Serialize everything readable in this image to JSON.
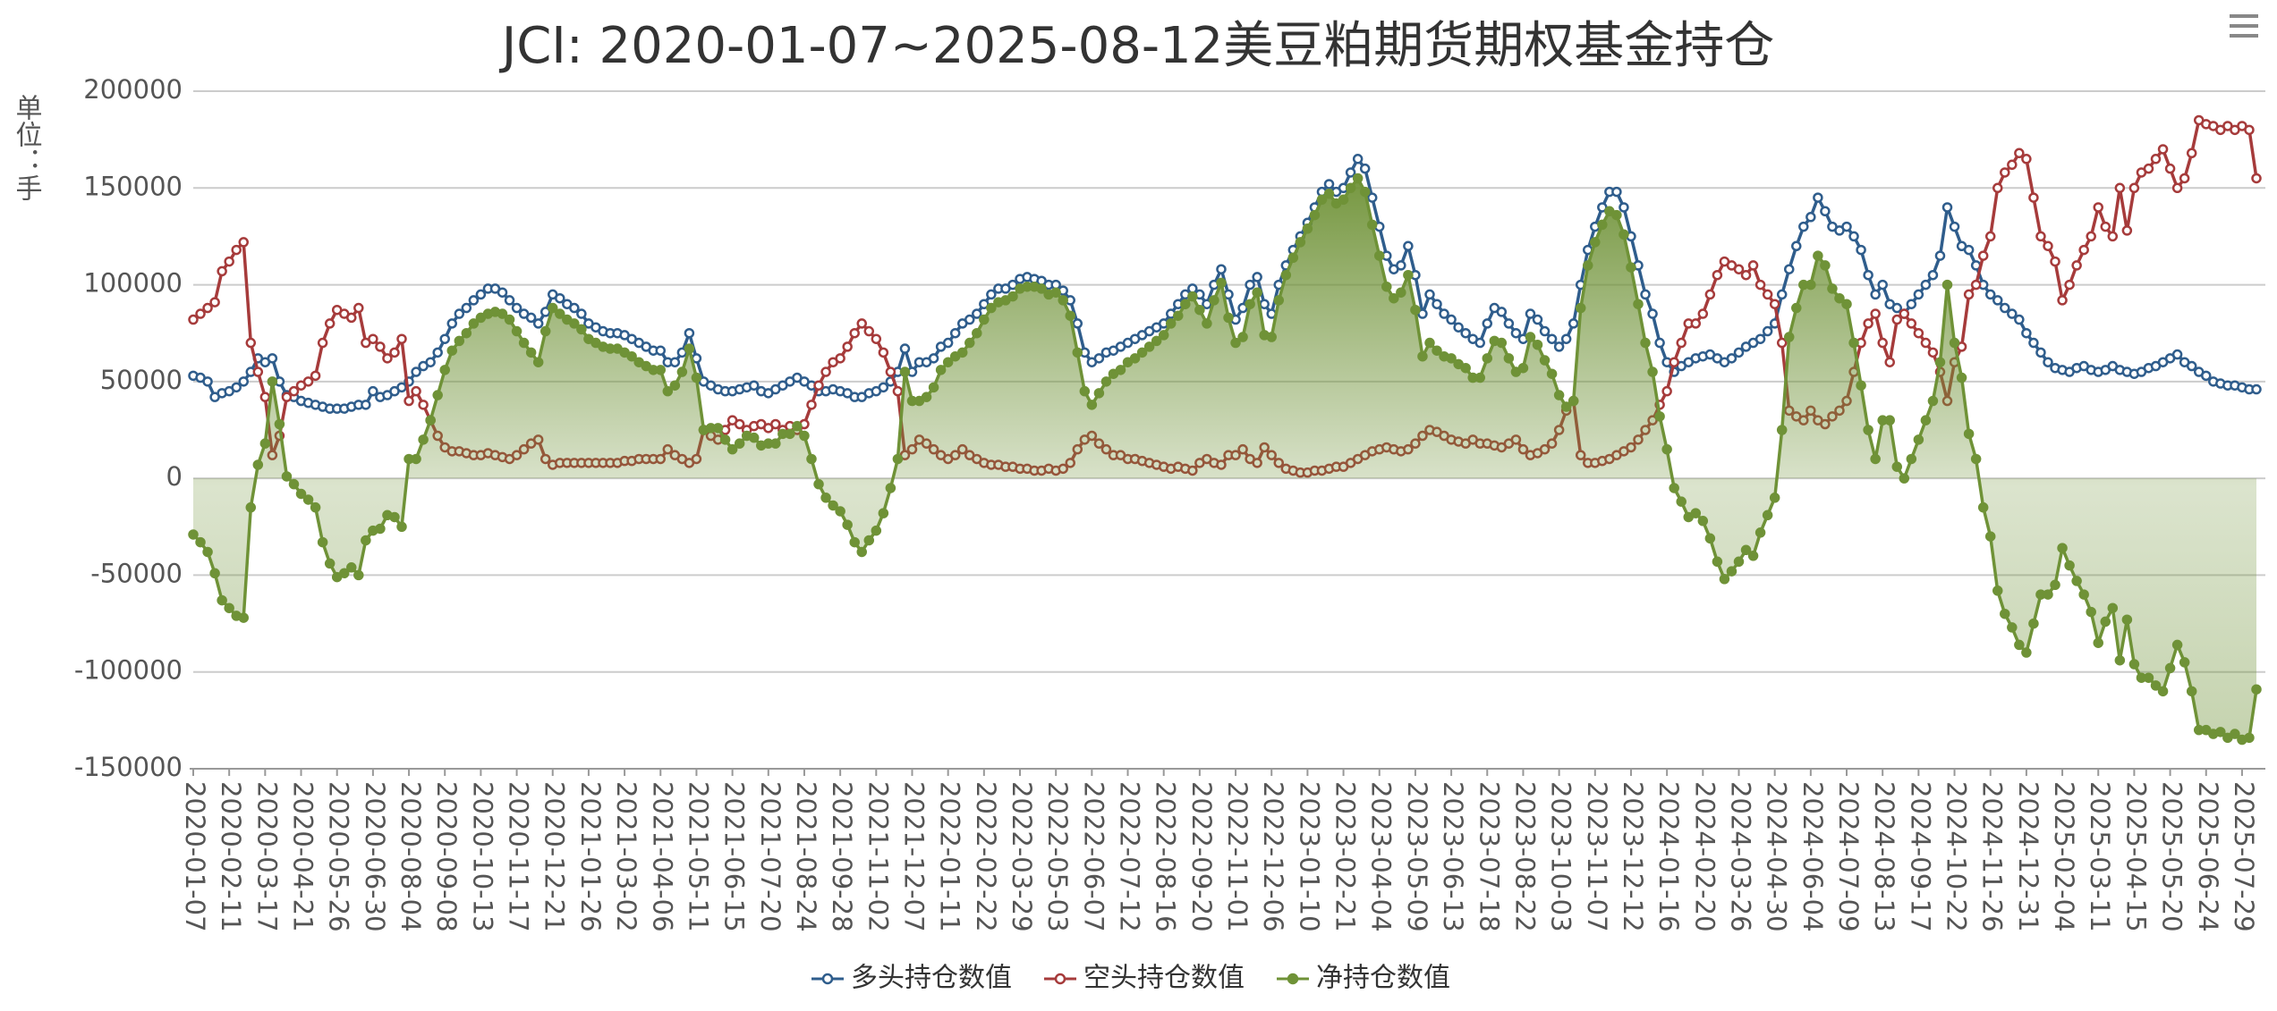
{
  "chart_data": {
    "type": "line",
    "title": "JCI: 2020-01-07~2025-08-12美豆粕期货期权基金持仓",
    "y_label": "单位：手",
    "categories": [
      "2020-01-07",
      null,
      null,
      null,
      null,
      "2020-02-11",
      null,
      null,
      null,
      null,
      "2020-03-17",
      null,
      null,
      null,
      null,
      "2020-04-21",
      null,
      null,
      null,
      null,
      "2020-05-26",
      null,
      null,
      null,
      null,
      "2020-06-30",
      null,
      null,
      null,
      null,
      "2020-08-04",
      null,
      null,
      null,
      null,
      "2020-09-08",
      null,
      null,
      null,
      null,
      "2020-10-13",
      null,
      null,
      null,
      null,
      "2020-11-17",
      null,
      null,
      null,
      null,
      "2020-12-21",
      null,
      null,
      null,
      null,
      "2021-01-26",
      null,
      null,
      null,
      null,
      "2021-03-02",
      null,
      null,
      null,
      null,
      "2021-04-06",
      null,
      null,
      null,
      null,
      "2021-05-11",
      null,
      null,
      null,
      null,
      "2021-06-15",
      null,
      null,
      null,
      null,
      "2021-07-20",
      null,
      null,
      null,
      null,
      "2021-08-24",
      null,
      null,
      null,
      null,
      "2021-09-28",
      null,
      null,
      null,
      null,
      "2021-11-02",
      null,
      null,
      null,
      null,
      "2021-12-07",
      null,
      null,
      null,
      null,
      "2022-01-11",
      null,
      null,
      null,
      null,
      "2022-02-22",
      null,
      null,
      null,
      null,
      "2022-03-29",
      null,
      null,
      null,
      null,
      "2022-05-03",
      null,
      null,
      null,
      null,
      "2022-06-07",
      null,
      null,
      null,
      null,
      "2022-07-12",
      null,
      null,
      null,
      null,
      "2022-08-16",
      null,
      null,
      null,
      null,
      "2022-09-20",
      null,
      null,
      null,
      null,
      "2022-11-01",
      null,
      null,
      null,
      null,
      "2022-12-06",
      null,
      null,
      null,
      null,
      "2023-01-10",
      null,
      null,
      null,
      null,
      "2023-02-21",
      null,
      null,
      null,
      null,
      "2023-04-04",
      null,
      null,
      null,
      null,
      "2023-05-09",
      null,
      null,
      null,
      null,
      "2023-06-13",
      null,
      null,
      null,
      null,
      "2023-07-18",
      null,
      null,
      null,
      null,
      "2023-08-22",
      null,
      null,
      null,
      null,
      "2023-10-03",
      null,
      null,
      null,
      null,
      "2023-11-07",
      null,
      null,
      null,
      null,
      "2023-12-12",
      null,
      null,
      null,
      null,
      "2024-01-16",
      null,
      null,
      null,
      null,
      "2024-02-20",
      null,
      null,
      null,
      null,
      "2024-03-26",
      null,
      null,
      null,
      null,
      "2024-04-30",
      null,
      null,
      null,
      null,
      "2024-06-04",
      null,
      null,
      null,
      null,
      "2024-07-09",
      null,
      null,
      null,
      null,
      "2024-08-13",
      null,
      null,
      null,
      null,
      "2024-09-17",
      null,
      null,
      null,
      null,
      "2024-10-22",
      null,
      null,
      null,
      null,
      "2024-11-26",
      null,
      null,
      null,
      null,
      "2024-12-31",
      null,
      null,
      null,
      null,
      "2025-02-04",
      null,
      null,
      null,
      null,
      "2025-03-11",
      null,
      null,
      null,
      null,
      "2025-04-15",
      null,
      null,
      null,
      null,
      "2025-05-20",
      null,
      null,
      null,
      null,
      "2025-06-24",
      null,
      null,
      null,
      null,
      "2025-07-29",
      null,
      null
    ],
    "series": [
      {
        "name": "多头持仓数值",
        "color": "#2f5d8c",
        "marker": "hollow",
        "values": [
          53000,
          52000,
          50000,
          42000,
          44000,
          45000,
          47000,
          50000,
          55000,
          62000,
          60000,
          62000,
          50000,
          43000,
          42000,
          40000,
          39000,
          38000,
          37000,
          36000,
          36000,
          36000,
          37000,
          38000,
          38000,
          45000,
          42000,
          43000,
          45000,
          47000,
          50000,
          55000,
          58000,
          60000,
          65000,
          72000,
          80000,
          85000,
          88000,
          92000,
          95000,
          98000,
          98000,
          96000,
          92000,
          88000,
          85000,
          83000,
          80000,
          86000,
          95000,
          93000,
          90000,
          88000,
          85000,
          80000,
          78000,
          76000,
          75000,
          75000,
          74000,
          72000,
          70000,
          68000,
          66000,
          66000,
          60000,
          60000,
          65000,
          75000,
          62000,
          50000,
          48000,
          46000,
          45000,
          45000,
          46000,
          47000,
          48000,
          45000,
          44000,
          46000,
          48000,
          50000,
          52000,
          50000,
          48000,
          45000,
          45000,
          46000,
          45000,
          44000,
          42000,
          42000,
          44000,
          45000,
          47000,
          50000,
          55000,
          67000,
          55000,
          60000,
          60000,
          62000,
          68000,
          70000,
          75000,
          80000,
          82000,
          85000,
          90000,
          95000,
          98000,
          98000,
          100000,
          103000,
          104000,
          103000,
          102000,
          100000,
          100000,
          97000,
          92000,
          80000,
          65000,
          60000,
          62000,
          65000,
          66000,
          68000,
          70000,
          72000,
          74000,
          76000,
          78000,
          80000,
          85000,
          90000,
          95000,
          98000,
          95000,
          90000,
          100000,
          108000,
          95000,
          82000,
          88000,
          100000,
          104000,
          90000,
          85000,
          100000,
          110000,
          118000,
          125000,
          132000,
          140000,
          148000,
          152000,
          148000,
          150000,
          158000,
          165000,
          160000,
          145000,
          130000,
          115000,
          108000,
          110000,
          120000,
          105000,
          85000,
          95000,
          90000,
          85000,
          82000,
          78000,
          75000,
          72000,
          70000,
          80000,
          88000,
          86000,
          80000,
          75000,
          72000,
          85000,
          82000,
          76000,
          72000,
          68000,
          72000,
          80000,
          100000,
          118000,
          130000,
          140000,
          148000,
          148000,
          140000,
          125000,
          110000,
          95000,
          85000,
          70000,
          60000,
          55000,
          58000,
          60000,
          62000,
          63000,
          64000,
          62000,
          60000,
          62000,
          65000,
          68000,
          70000,
          72000,
          76000,
          80000,
          95000,
          108000,
          120000,
          130000,
          135000,
          145000,
          138000,
          130000,
          128000,
          130000,
          125000,
          118000,
          105000,
          95000,
          100000,
          90000,
          88000,
          85000,
          90000,
          95000,
          100000,
          105000,
          115000,
          140000,
          130000,
          120000,
          118000,
          110000,
          100000,
          95000,
          92000,
          88000,
          85000,
          82000,
          75000,
          70000,
          65000,
          60000,
          57000,
          56000,
          55000,
          57000,
          58000,
          56000,
          55000,
          56000,
          58000,
          56000,
          55000,
          54000,
          55000,
          57000,
          58000,
          60000,
          62000,
          64000,
          60000,
          58000,
          55000,
          53000,
          50000,
          49000,
          48000,
          48000,
          47000,
          46000,
          46000
        ]
      },
      {
        "name": "空头持仓数值",
        "color": "#a63b3b",
        "marker": "hollow",
        "values": [
          82000,
          85000,
          88000,
          91000,
          107000,
          112000,
          118000,
          122000,
          70000,
          55000,
          42000,
          12000,
          22000,
          42000,
          45000,
          48000,
          50000,
          53000,
          70000,
          80000,
          87000,
          85000,
          83000,
          88000,
          70000,
          72000,
          68000,
          62000,
          65000,
          72000,
          40000,
          45000,
          38000,
          30000,
          22000,
          16000,
          14000,
          14000,
          13000,
          12000,
          12000,
          13000,
          12000,
          11000,
          10000,
          12000,
          15000,
          18000,
          20000,
          10000,
          7000,
          8000,
          8000,
          8000,
          8000,
          8000,
          8000,
          8000,
          8000,
          8000,
          9000,
          9000,
          10000,
          10000,
          10000,
          10000,
          15000,
          12000,
          10000,
          8000,
          10000,
          25000,
          22000,
          20000,
          25000,
          30000,
          28000,
          25000,
          27000,
          28000,
          26000,
          28000,
          25000,
          27000,
          25000,
          28000,
          38000,
          48000,
          55000,
          60000,
          62000,
          68000,
          75000,
          80000,
          76000,
          72000,
          65000,
          55000,
          45000,
          12000,
          15000,
          20000,
          18000,
          15000,
          12000,
          10000,
          12000,
          15000,
          12000,
          10000,
          8000,
          7000,
          7000,
          6000,
          6000,
          5000,
          5000,
          4000,
          4000,
          5000,
          4000,
          5000,
          8000,
          15000,
          20000,
          22000,
          18000,
          15000,
          12000,
          12000,
          10000,
          10000,
          9000,
          8000,
          7000,
          6000,
          5000,
          6000,
          5000,
          4000,
          8000,
          10000,
          8000,
          7000,
          12000,
          12000,
          15000,
          10000,
          8000,
          16000,
          12000,
          8000,
          5000,
          4000,
          3000,
          3000,
          4000,
          4000,
          5000,
          6000,
          6000,
          8000,
          10000,
          12000,
          14000,
          15000,
          16000,
          15000,
          14000,
          15000,
          18000,
          22000,
          25000,
          24000,
          22000,
          20000,
          19000,
          18000,
          20000,
          18000,
          18000,
          17000,
          16000,
          18000,
          20000,
          15000,
          12000,
          13000,
          15000,
          18000,
          25000,
          35000,
          40000,
          12000,
          8000,
          8000,
          9000,
          10000,
          12000,
          14000,
          16000,
          20000,
          25000,
          30000,
          38000,
          45000,
          60000,
          70000,
          80000,
          80000,
          85000,
          95000,
          105000,
          112000,
          110000,
          108000,
          105000,
          110000,
          100000,
          95000,
          90000,
          70000,
          35000,
          32000,
          30000,
          35000,
          30000,
          28000,
          32000,
          35000,
          40000,
          55000,
          70000,
          80000,
          85000,
          70000,
          60000,
          82000,
          85000,
          80000,
          75000,
          70000,
          65000,
          55000,
          40000,
          60000,
          68000,
          95000,
          100000,
          115000,
          125000,
          150000,
          158000,
          162000,
          168000,
          165000,
          145000,
          125000,
          120000,
          112000,
          92000,
          100000,
          110000,
          118000,
          125000,
          140000,
          130000,
          125000,
          150000,
          128000,
          150000,
          158000,
          160000,
          165000,
          170000,
          160000,
          150000,
          155000,
          168000,
          185000,
          183000,
          182000,
          180000,
          182000,
          180000,
          182000,
          180000,
          155000
        ]
      },
      {
        "name": "净持仓数值",
        "color": "#6f9237",
        "marker": "filled",
        "area": true,
        "values": [
          -29000,
          -33000,
          -38000,
          -49000,
          -63000,
          -67000,
          -71000,
          -72000,
          -15000,
          7000,
          18000,
          50000,
          28000,
          1000,
          -3000,
          -8000,
          -11000,
          -15000,
          -33000,
          -44000,
          -51000,
          -49000,
          -46000,
          -50000,
          -32000,
          -27000,
          -26000,
          -19000,
          -20000,
          -25000,
          10000,
          10000,
          20000,
          30000,
          43000,
          56000,
          66000,
          71000,
          75000,
          80000,
          83000,
          85000,
          86000,
          85000,
          82000,
          76000,
          70000,
          65000,
          60000,
          76000,
          88000,
          85000,
          82000,
          80000,
          77000,
          72000,
          70000,
          68000,
          67000,
          67000,
          65000,
          63000,
          60000,
          58000,
          56000,
          56000,
          45000,
          48000,
          55000,
          67000,
          52000,
          25000,
          26000,
          26000,
          20000,
          15000,
          18000,
          22000,
          21000,
          17000,
          18000,
          18000,
          23000,
          23000,
          27000,
          22000,
          10000,
          -3000,
          -10000,
          -14000,
          -17000,
          -24000,
          -33000,
          -38000,
          -32000,
          -27000,
          -18000,
          -5000,
          10000,
          55000,
          40000,
          40000,
          42000,
          47000,
          56000,
          60000,
          63000,
          65000,
          70000,
          75000,
          82000,
          88000,
          91000,
          92000,
          94000,
          98000,
          99000,
          99000,
          98000,
          95000,
          96000,
          92000,
          84000,
          65000,
          45000,
          38000,
          44000,
          50000,
          54000,
          56000,
          60000,
          62000,
          65000,
          68000,
          71000,
          74000,
          80000,
          84000,
          90000,
          94000,
          87000,
          80000,
          92000,
          101000,
          83000,
          70000,
          73000,
          90000,
          96000,
          74000,
          73000,
          92000,
          105000,
          114000,
          122000,
          129000,
          136000,
          144000,
          147000,
          142000,
          144000,
          150000,
          155000,
          148000,
          131000,
          115000,
          99000,
          93000,
          96000,
          105000,
          87000,
          63000,
          70000,
          66000,
          63000,
          62000,
          59000,
          57000,
          52000,
          52000,
          62000,
          71000,
          70000,
          62000,
          55000,
          57000,
          73000,
          69000,
          61000,
          54000,
          43000,
          37000,
          40000,
          88000,
          110000,
          122000,
          131000,
          138000,
          136000,
          126000,
          109000,
          90000,
          70000,
          55000,
          32000,
          15000,
          -5000,
          -12000,
          -20000,
          -18000,
          -22000,
          -31000,
          -43000,
          -52000,
          -48000,
          -43000,
          -37000,
          -40000,
          -28000,
          -19000,
          -10000,
          25000,
          73000,
          88000,
          100000,
          100000,
          115000,
          110000,
          98000,
          93000,
          90000,
          70000,
          48000,
          25000,
          10000,
          30000,
          30000,
          6000,
          0,
          10000,
          20000,
          30000,
          40000,
          60000,
          100000,
          70000,
          52000,
          23000,
          10000,
          -15000,
          -30000,
          -58000,
          -70000,
          -77000,
          -86000,
          -90000,
          -75000,
          -60000,
          -60000,
          -55000,
          -36000,
          -45000,
          -53000,
          -60000,
          -69000,
          -85000,
          -74000,
          -67000,
          -94000,
          -73000,
          -96000,
          -103000,
          -103000,
          -107000,
          -110000,
          -98000,
          -86000,
          -95000,
          -110000,
          -130000,
          -130000,
          -132000,
          -131000,
          -134000,
          -132000,
          -135000,
          -134000,
          -109000
        ]
      }
    ],
    "ylim": [
      -150000,
      200000
    ],
    "yticks": [
      -150000,
      -100000,
      -50000,
      0,
      50000,
      100000,
      150000,
      200000
    ],
    "grid": true
  }
}
